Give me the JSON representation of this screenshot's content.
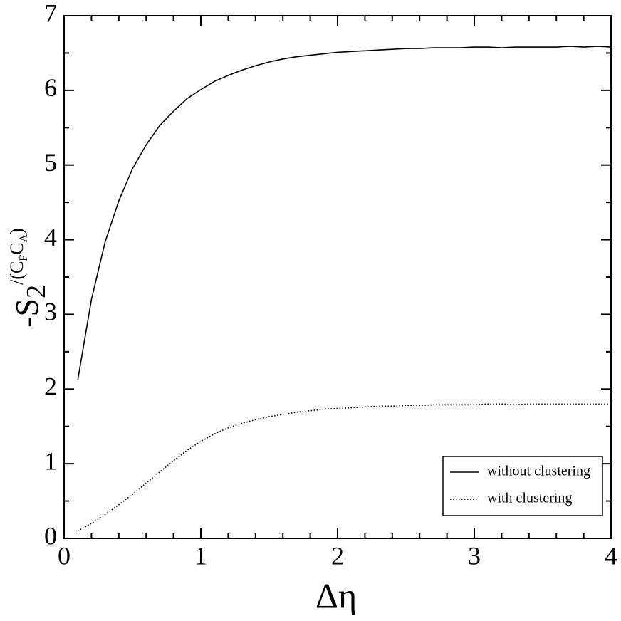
{
  "chart_data": {
    "type": "line",
    "xlabel": "Δη",
    "ylabel_parts": [
      "-S",
      "2",
      "/(C",
      "F",
      "C",
      "A",
      ")"
    ],
    "x": [
      0.1,
      0.2,
      0.3,
      0.4,
      0.5,
      0.6,
      0.7,
      0.8,
      0.9,
      1.0,
      1.1,
      1.2,
      1.3,
      1.4,
      1.5,
      1.6,
      1.7,
      1.8,
      1.9,
      2.0,
      2.1,
      2.2,
      2.3,
      2.4,
      2.5,
      2.6,
      2.7,
      2.8,
      2.9,
      3.0,
      3.1,
      3.2,
      3.3,
      3.4,
      3.5,
      3.6,
      3.7,
      3.8,
      3.9,
      4.0
    ],
    "series": [
      {
        "name": "without clustering",
        "color": "#000000",
        "dash": "solid",
        "values": [
          2.12,
          3.2,
          3.97,
          4.52,
          4.95,
          5.27,
          5.53,
          5.72,
          5.89,
          6.01,
          6.12,
          6.2,
          6.27,
          6.33,
          6.38,
          6.42,
          6.45,
          6.47,
          6.49,
          6.51,
          6.52,
          6.53,
          6.54,
          6.55,
          6.56,
          6.56,
          6.57,
          6.57,
          6.57,
          6.58,
          6.58,
          6.57,
          6.58,
          6.58,
          6.58,
          6.58,
          6.59,
          6.58,
          6.59,
          6.58
        ]
      },
      {
        "name": "with clustering",
        "color": "#000000",
        "dash": "dotted",
        "values": [
          0.1,
          0.2,
          0.32,
          0.45,
          0.59,
          0.74,
          0.89,
          1.04,
          1.18,
          1.3,
          1.4,
          1.48,
          1.54,
          1.59,
          1.63,
          1.66,
          1.69,
          1.71,
          1.73,
          1.74,
          1.75,
          1.76,
          1.77,
          1.77,
          1.78,
          1.78,
          1.79,
          1.79,
          1.79,
          1.79,
          1.8,
          1.8,
          1.79,
          1.8,
          1.8,
          1.8,
          1.8,
          1.8,
          1.8,
          1.8
        ]
      }
    ],
    "xlim": [
      0,
      4
    ],
    "ylim": [
      0,
      7
    ],
    "xticks": [
      0,
      1,
      2,
      3,
      4
    ],
    "yticks": [
      0,
      1,
      2,
      3,
      4,
      5,
      6,
      7
    ],
    "xticks_minor": [
      0.2,
      0.4,
      0.6,
      0.8,
      1.2,
      1.4,
      1.6,
      1.8,
      2.2,
      2.4,
      2.6,
      2.8,
      3.2,
      3.4,
      3.6,
      3.8
    ],
    "yticks_minor": [
      0.5,
      1.5,
      2.5,
      3.5,
      4.5,
      5.5,
      6.5
    ],
    "grid": false,
    "legend": "lower right"
  }
}
